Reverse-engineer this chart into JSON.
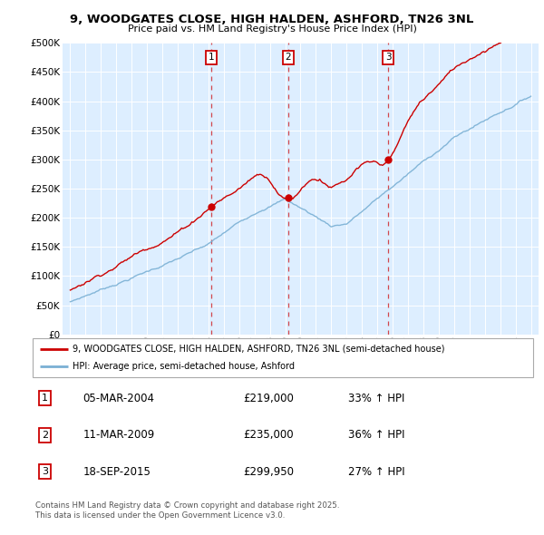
{
  "title": "9, WOODGATES CLOSE, HIGH HALDEN, ASHFORD, TN26 3NL",
  "subtitle": "Price paid vs. HM Land Registry's House Price Index (HPI)",
  "legend_line1": "9, WOODGATES CLOSE, HIGH HALDEN, ASHFORD, TN26 3NL (semi-detached house)",
  "legend_line2": "HPI: Average price, semi-detached house, Ashford",
  "transactions": [
    {
      "label": "1",
      "date": "05-MAR-2004",
      "price": "£219,000",
      "hpi_pct": "33% ↑ HPI",
      "x_year": 2004.2,
      "y_val": 219000
    },
    {
      "label": "2",
      "date": "11-MAR-2009",
      "price": "£235,000",
      "hpi_pct": "36% ↑ HPI",
      "x_year": 2009.19,
      "y_val": 235000
    },
    {
      "label": "3",
      "date": "18-SEP-2015",
      "price": "£299,950",
      "hpi_pct": "27% ↑ HPI",
      "x_year": 2015.71,
      "y_val": 299950
    }
  ],
  "footer": "Contains HM Land Registry data © Crown copyright and database right 2025.\nThis data is licensed under the Open Government Licence v3.0.",
  "bg_color": "#ddeeff",
  "red_color": "#cc0000",
  "blue_color": "#7ab0d4",
  "ylim": [
    0,
    500000
  ],
  "xlim": [
    1994.5,
    2025.5
  ],
  "y_ticks": [
    0,
    50000,
    100000,
    150000,
    200000,
    250000,
    300000,
    350000,
    400000,
    450000,
    500000
  ]
}
